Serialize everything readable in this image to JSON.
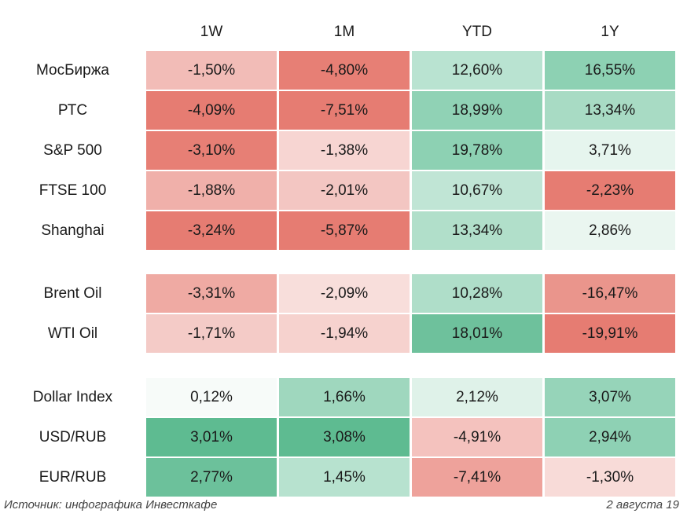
{
  "chart_data": {
    "type": "table",
    "columns": [
      "1W",
      "1M",
      "YTD",
      "1Y"
    ],
    "groups": [
      {
        "rows": [
          {
            "label": "МосБиржа",
            "values": [
              "-1,50%",
              "-4,80%",
              "12,60%",
              "16,55%"
            ],
            "numbers": [
              -1.5,
              -4.8,
              12.6,
              16.55
            ]
          },
          {
            "label": "РТС",
            "values": [
              "-4,09%",
              "-7,51%",
              "18,99%",
              "13,34%"
            ],
            "numbers": [
              -4.09,
              -7.51,
              18.99,
              13.34
            ]
          },
          {
            "label": "S&P 500",
            "values": [
              "-3,10%",
              "-1,38%",
              "19,78%",
              "3,71%"
            ],
            "numbers": [
              -3.1,
              -1.38,
              19.78,
              3.71
            ]
          },
          {
            "label": "FTSE 100",
            "values": [
              "-1,88%",
              "-2,01%",
              "10,67%",
              "-2,23%"
            ],
            "numbers": [
              -1.88,
              -2.01,
              10.67,
              -2.23
            ]
          },
          {
            "label": "Shanghai",
            "values": [
              "-3,24%",
              "-5,87%",
              "13,34%",
              "2,86%"
            ],
            "numbers": [
              -3.24,
              -5.87,
              13.34,
              2.86
            ]
          }
        ]
      },
      {
        "rows": [
          {
            "label": "Brent Oil",
            "values": [
              "-3,31%",
              "-2,09%",
              "10,28%",
              "-16,47%"
            ],
            "numbers": [
              -3.31,
              -2.09,
              10.28,
              -16.47
            ]
          },
          {
            "label": "WTI Oil",
            "values": [
              "-1,71%",
              "-1,94%",
              "18,01%",
              "-19,91%"
            ],
            "numbers": [
              -1.71,
              -1.94,
              18.01,
              -19.91
            ]
          }
        ]
      },
      {
        "rows": [
          {
            "label": "Dollar Index",
            "values": [
              "0,12%",
              "1,66%",
              "2,12%",
              "3,07%"
            ],
            "numbers": [
              0.12,
              1.66,
              2.12,
              3.07
            ]
          },
          {
            "label": "USD/RUB",
            "values": [
              "3,01%",
              "3,08%",
              "-4,91%",
              "2,94%"
            ],
            "numbers": [
              3.01,
              3.08,
              -4.91,
              2.94
            ]
          },
          {
            "label": "EUR/RUB",
            "values": [
              "2,77%",
              "1,45%",
              "-7,41%",
              "-1,30%"
            ],
            "numbers": [
              2.77,
              1.45,
              -7.41,
              -1.3
            ]
          }
        ]
      }
    ],
    "cell_colors": [
      [
        "#f2bcb7",
        "#e77f75",
        "#b9e3d1",
        "#8dd1b3"
      ],
      [
        "#e67c72",
        "#e67c72",
        "#90d2b5",
        "#a8dbc4"
      ],
      [
        "#e77f75",
        "#f7d5d2",
        "#8dd1b3",
        "#e6f5ee"
      ],
      [
        "#f0b0aa",
        "#f3c6c2",
        "#c0e5d5",
        "#e67c72"
      ],
      [
        "#e67c72",
        "#e67c72",
        "#b1dfca",
        "#eaf6f0"
      ],
      [
        "#efaaa3",
        "#f8dedb",
        "#afdec9",
        "#ea958c"
      ],
      [
        "#f4cbc7",
        "#f6d2ce",
        "#6ec19c",
        "#e67c72"
      ],
      [
        "#f7fbf9",
        "#9fd7be",
        "#dff2e9",
        "#96d4b9"
      ],
      [
        "#5ebb91",
        "#5ebb91",
        "#f4c2be",
        "#8ed1b4"
      ],
      [
        "#6cc19b",
        "#b7e2cf",
        "#eea29b",
        "#f8dbd8"
      ]
    ]
  },
  "footer": {
    "source": "Источник: инфографика Инвесткафе",
    "date": "2 августа 19"
  }
}
